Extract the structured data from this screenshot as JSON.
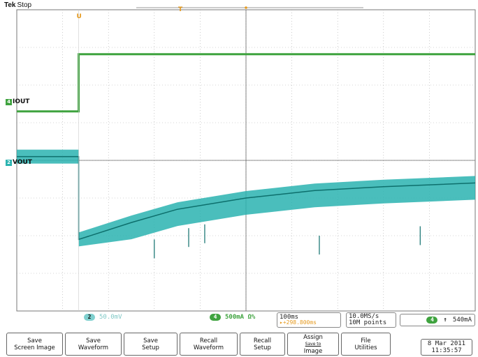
{
  "header": {
    "brand": "Tek",
    "status": "Stop"
  },
  "channels": {
    "iout_label": "IOUT",
    "iout_number": "4",
    "vout_label": "VOUT",
    "vout_number": "2"
  },
  "markers": {
    "trigger_pos": "U",
    "expansion": "T"
  },
  "status_bar": {
    "ch2_number": "2",
    "ch2_scale": "50.0mV",
    "ch4_number": "4",
    "ch4_scale": "500mA Ω%",
    "timebase": "100ms",
    "timebase_position": "▸+298.800ms",
    "sample_rate": "10.0MS/s",
    "record_length": "10M points",
    "trigger_channel": "4",
    "trigger_slope": "↑",
    "trigger_level": "540mA"
  },
  "buttons": [
    {
      "line1": "Save",
      "line2": "Screen Image"
    },
    {
      "line1": "Save",
      "line2": "Waveform"
    },
    {
      "line1": "Save",
      "line2": "Setup"
    },
    {
      "line1": "Recall",
      "line2": "Waveform"
    },
    {
      "line1": "Recall",
      "line2": "Setup"
    },
    {
      "line1": "Assign",
      "line2": "Save to",
      "line3": "Image"
    },
    {
      "line1": "File",
      "line2": "Utilities"
    }
  ],
  "datetime": {
    "date": "8 Mar 2011",
    "time": "11:35:57"
  },
  "colors": {
    "ch2": "#2ab3b0",
    "ch4": "#3fa33f",
    "marker": "#e69a1e",
    "grid": "#888888"
  },
  "chart_data": {
    "type": "line",
    "title": "",
    "xlabel": "",
    "ylabel": "",
    "time_divisions": 10,
    "vertical_divisions": 8,
    "trigger_time_div": 1.35,
    "series": [
      {
        "name": "IOUT",
        "points_div": [
          [
            0,
            5.3
          ],
          [
            1.35,
            5.3
          ],
          [
            1.35,
            6.82
          ],
          [
            10,
            6.82
          ]
        ]
      },
      {
        "name": "VOUT",
        "points_div": [
          [
            0,
            4.1
          ],
          [
            1.35,
            4.1
          ],
          [
            1.35,
            1.9
          ],
          [
            2.5,
            2.35
          ],
          [
            3.5,
            2.7
          ],
          [
            5.0,
            3.0
          ],
          [
            6.5,
            3.2
          ],
          [
            8.0,
            3.3
          ],
          [
            10,
            3.4
          ]
        ]
      }
    ]
  }
}
